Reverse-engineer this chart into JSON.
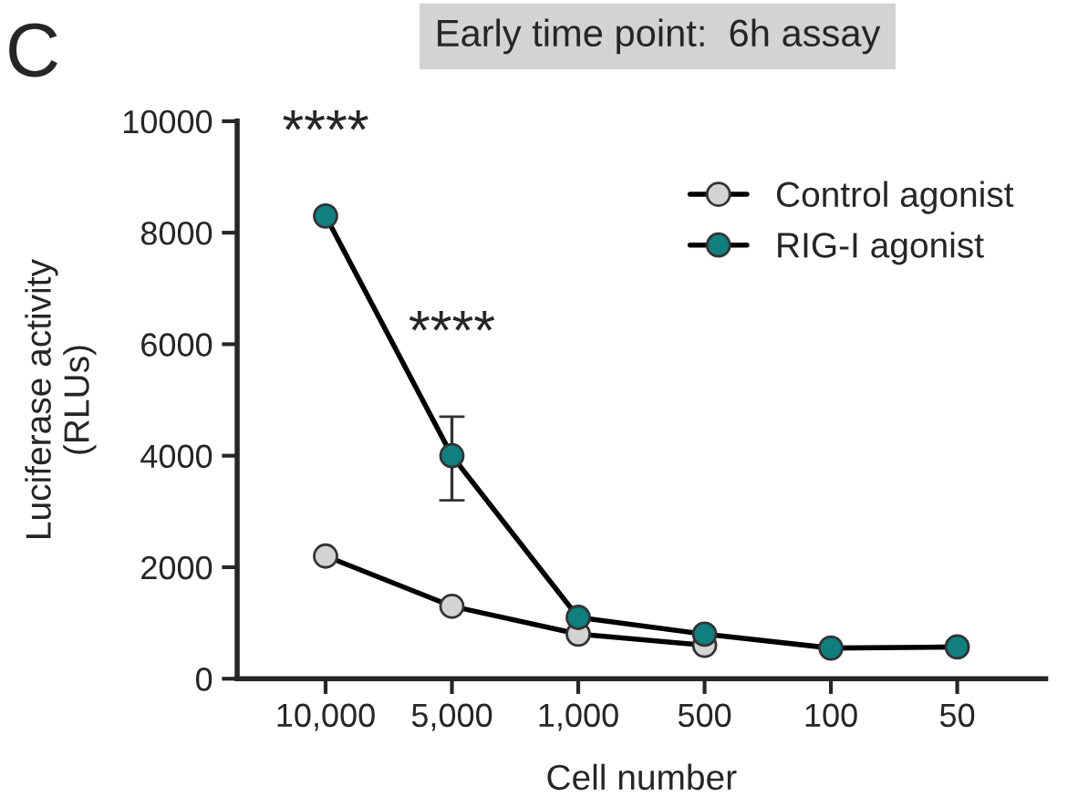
{
  "chart_data": {
    "type": "line",
    "title": "Early time point:  6h assay",
    "xlabel": "Cell number",
    "ylabel": "Luciferase activity\n(RLUs)",
    "categories": [
      "10,000",
      "5,000",
      "1,000",
      "500",
      "100",
      "50"
    ],
    "series": [
      {
        "name": "Control agonist",
        "color": "#d3d3d3",
        "values": [
          2200,
          1300,
          800,
          600,
          null,
          null
        ]
      },
      {
        "name": "RIG-I agonist",
        "color": "#0f7f7f",
        "values": [
          8300,
          4000,
          1100,
          800,
          550,
          570
        ],
        "errors": [
          null,
          [
            3200,
            4700
          ],
          null,
          null,
          null,
          null
        ]
      }
    ],
    "ylim": [
      0,
      10000
    ],
    "yticks": [
      0,
      2000,
      4000,
      6000,
      8000,
      10000
    ],
    "annotations": [
      "C",
      {
        "text": "****",
        "x": "10,000",
        "y": 8300
      },
      {
        "text": "****",
        "x": "5,000",
        "y": 4700
      }
    ],
    "marker": "circle",
    "line_style": "solid",
    "grid": false,
    "legend": "top right"
  }
}
